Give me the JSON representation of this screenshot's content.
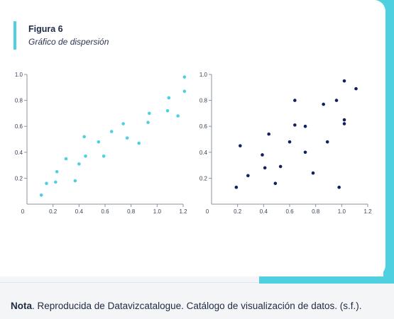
{
  "colors": {
    "accent": "#4fd0e0",
    "cyan_points": "#4fd0e0",
    "navy_points": "#13205a",
    "axis": "#8a93a3"
  },
  "figure": {
    "title": "Figura 6",
    "subtitle": "Gráfico de dispersión"
  },
  "note": {
    "label": "Nota",
    "text": ". Reproducida de Datavizcatalogue. Catálogo de visualización de datos. (s.f.)."
  },
  "chart_data": [
    {
      "type": "scatter",
      "name": "left-scatter",
      "color": "#4fd0e0",
      "xlim": [
        0,
        1.2
      ],
      "ylim": [
        0,
        1.0
      ],
      "xticks": [
        "0",
        "0.2",
        "0.4",
        "0.6",
        "0.8",
        "1.0",
        "1.2"
      ],
      "yticks": [
        "0.2",
        "0.4",
        "0.6",
        "0.8",
        "1.0"
      ],
      "points": [
        [
          0.11,
          0.07
        ],
        [
          0.15,
          0.16
        ],
        [
          0.22,
          0.17
        ],
        [
          0.23,
          0.25
        ],
        [
          0.3,
          0.35
        ],
        [
          0.37,
          0.18
        ],
        [
          0.4,
          0.31
        ],
        [
          0.44,
          0.52
        ],
        [
          0.45,
          0.37
        ],
        [
          0.55,
          0.48
        ],
        [
          0.59,
          0.37
        ],
        [
          0.65,
          0.56
        ],
        [
          0.74,
          0.62
        ],
        [
          0.77,
          0.51
        ],
        [
          0.86,
          0.47
        ],
        [
          0.93,
          0.63
        ],
        [
          0.94,
          0.7
        ],
        [
          1.08,
          0.72
        ],
        [
          1.09,
          0.82
        ],
        [
          1.16,
          0.68
        ],
        [
          1.21,
          0.87
        ],
        [
          1.21,
          0.98
        ]
      ]
    },
    {
      "type": "scatter",
      "name": "right-scatter",
      "color": "#13205a",
      "xlim": [
        0,
        1.2
      ],
      "ylim": [
        0,
        1.0
      ],
      "xticks": [
        "0",
        "0.2",
        "0.4",
        "0.6",
        "0.8",
        "1.0",
        "1.2"
      ],
      "yticks": [
        "0.2",
        "0.4",
        "0.6",
        "0.8",
        "1.0"
      ],
      "points": [
        [
          0.19,
          0.13
        ],
        [
          0.22,
          0.45
        ],
        [
          0.28,
          0.22
        ],
        [
          0.39,
          0.38
        ],
        [
          0.41,
          0.28
        ],
        [
          0.44,
          0.54
        ],
        [
          0.49,
          0.16
        ],
        [
          0.53,
          0.29
        ],
        [
          0.6,
          0.48
        ],
        [
          0.64,
          0.61
        ],
        [
          0.64,
          0.8
        ],
        [
          0.72,
          0.6
        ],
        [
          0.72,
          0.4
        ],
        [
          0.78,
          0.24
        ],
        [
          0.86,
          0.77
        ],
        [
          0.89,
          0.48
        ],
        [
          0.96,
          0.8
        ],
        [
          0.98,
          0.13
        ],
        [
          1.02,
          0.62
        ],
        [
          1.02,
          0.65
        ],
        [
          1.02,
          0.95
        ],
        [
          1.11,
          0.89
        ]
      ]
    }
  ]
}
